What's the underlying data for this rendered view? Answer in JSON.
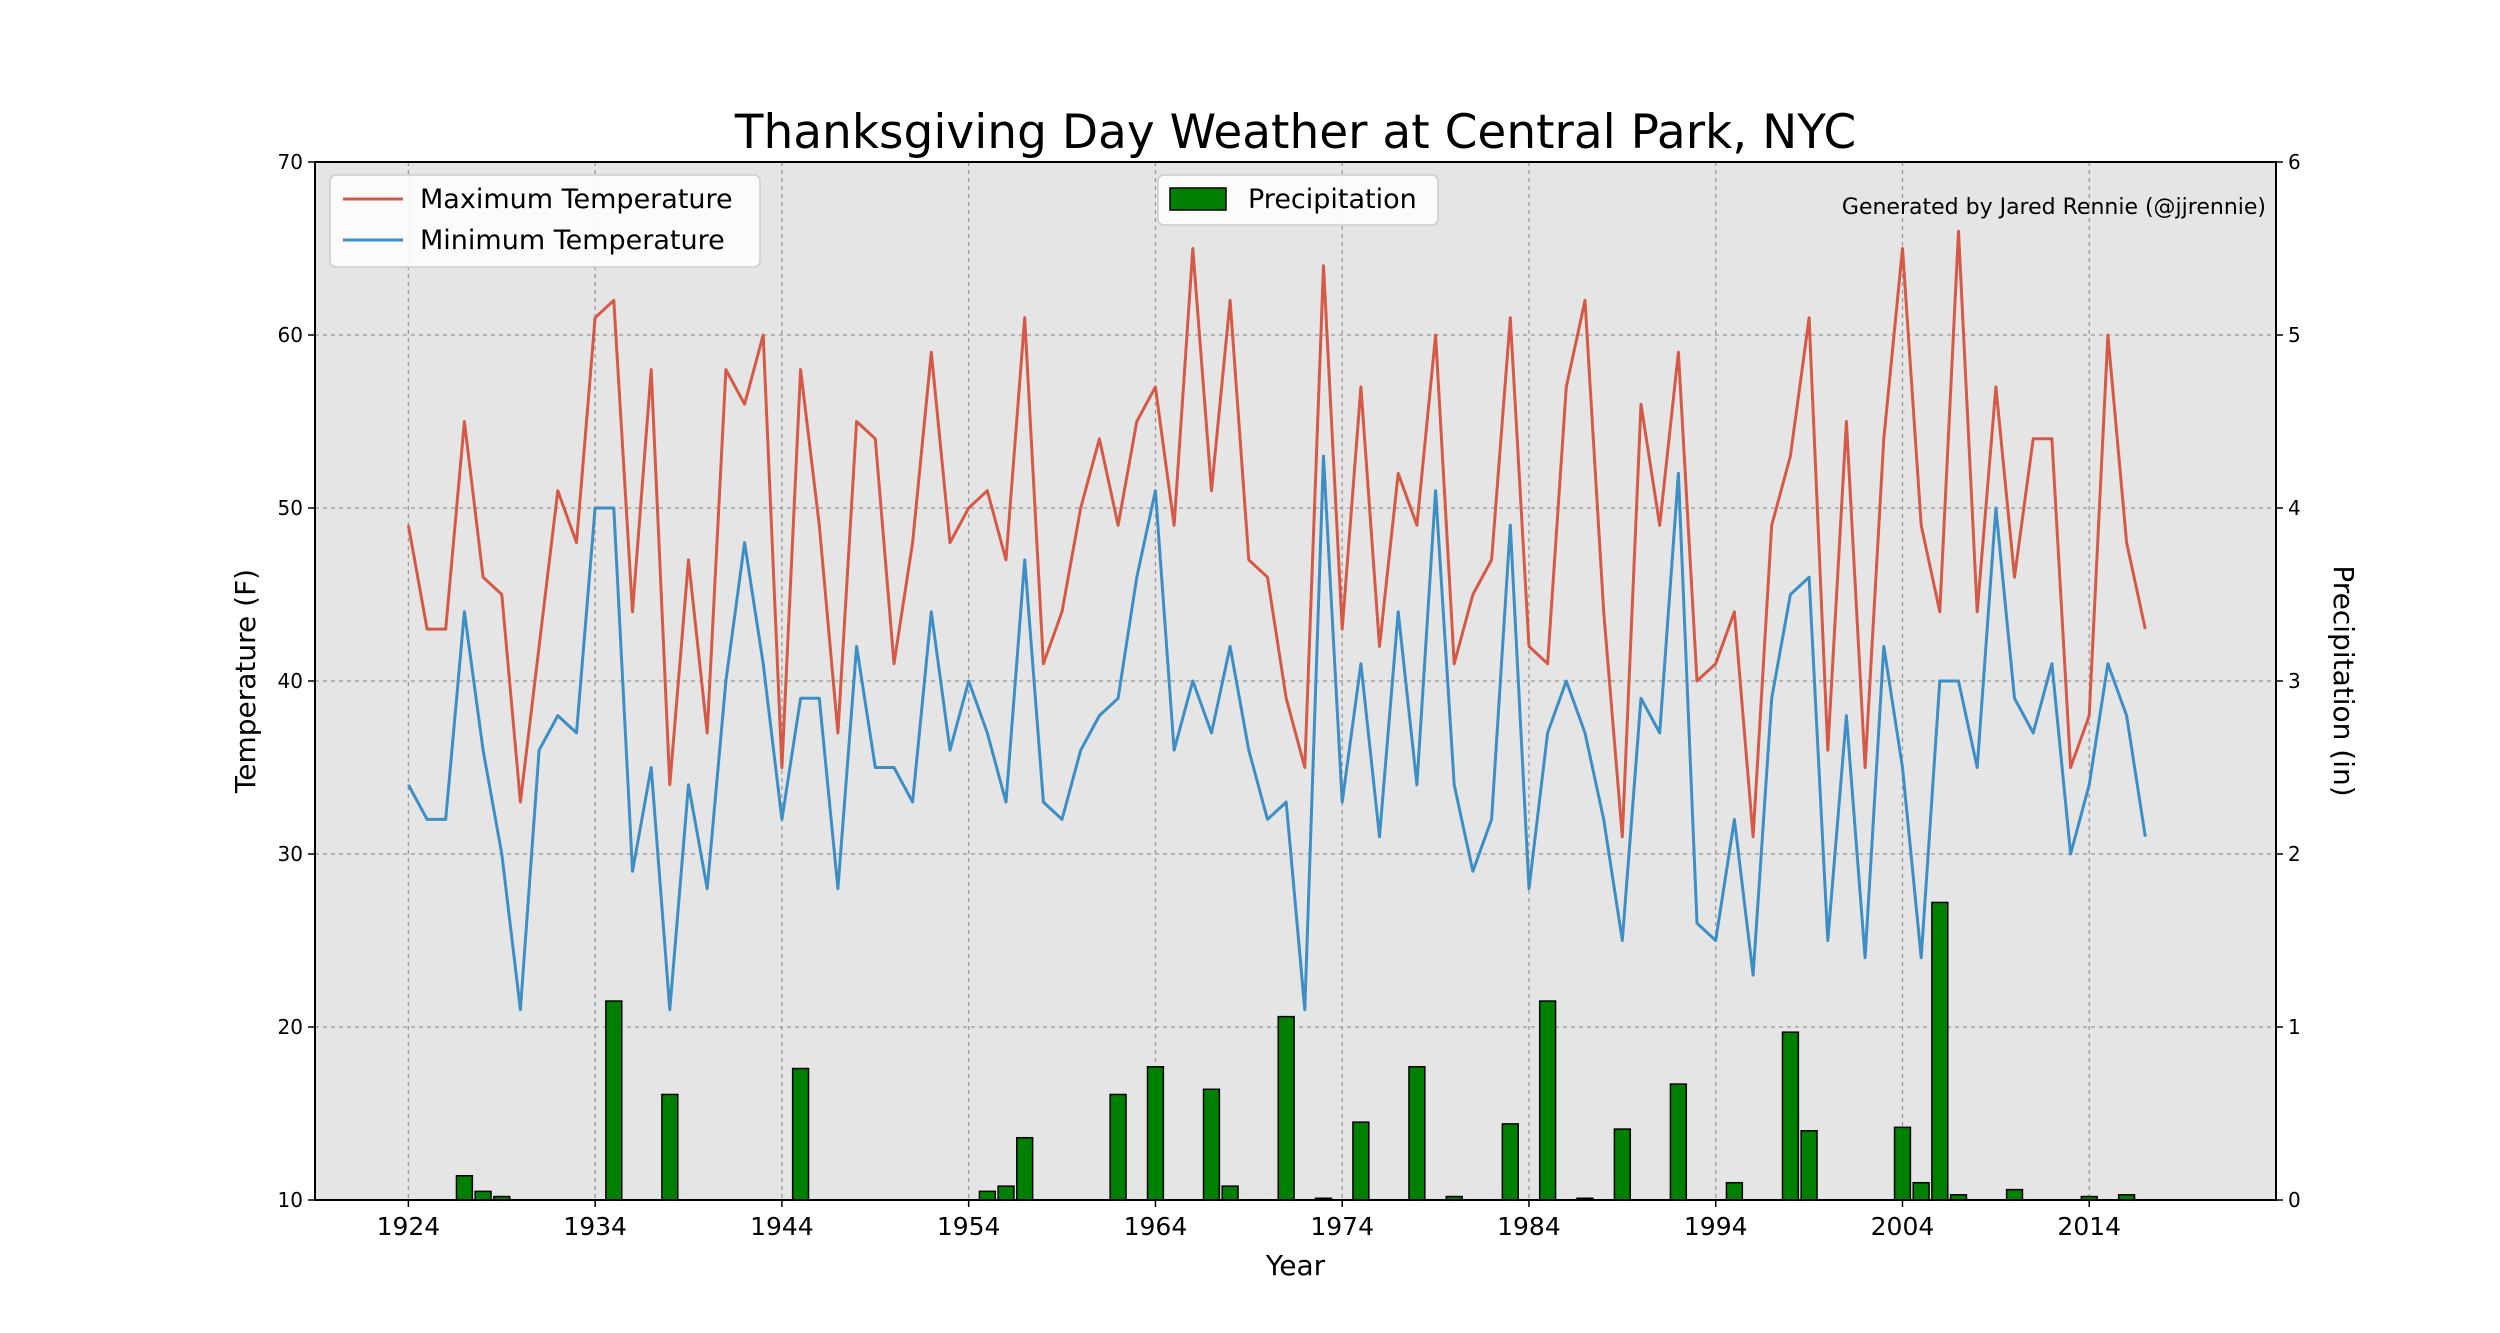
{
  "chart_data": {
    "type": "line",
    "title": "Thanksgiving Day Weather at Central Park, NYC",
    "xlabel": "Year",
    "ylabel_left": "Temperature (F)",
    "ylabel_right": "Precipitation (in)",
    "annotation": "Generated by Jared Rennie (@jjrennie)",
    "xlim": [
      1919,
      2024
    ],
    "ylim_left": [
      10,
      70
    ],
    "ylim_right": [
      0,
      6
    ],
    "xticks": [
      1924,
      1934,
      1944,
      1954,
      1964,
      1974,
      1984,
      1994,
      2004,
      2014
    ],
    "yticks_left": [
      10,
      20,
      30,
      40,
      50,
      60,
      70
    ],
    "yticks_right": [
      0,
      1,
      2,
      3,
      4,
      5,
      6
    ],
    "grid": true,
    "legend_left_placement": "top-left",
    "legend_right_placement": "top-center",
    "x": [
      1924,
      1925,
      1926,
      1927,
      1928,
      1929,
      1930,
      1931,
      1932,
      1933,
      1934,
      1935,
      1936,
      1937,
      1938,
      1939,
      1940,
      1941,
      1942,
      1943,
      1944,
      1945,
      1946,
      1947,
      1948,
      1949,
      1950,
      1951,
      1952,
      1953,
      1954,
      1955,
      1956,
      1957,
      1958,
      1959,
      1960,
      1961,
      1962,
      1963,
      1964,
      1965,
      1966,
      1967,
      1968,
      1969,
      1970,
      1971,
      1972,
      1973,
      1974,
      1975,
      1976,
      1977,
      1978,
      1979,
      1980,
      1981,
      1982,
      1983,
      1984,
      1985,
      1986,
      1987,
      1988,
      1989,
      1990,
      1991,
      1992,
      1993,
      1994,
      1995,
      1996,
      1997,
      1998,
      1999,
      2000,
      2001,
      2002,
      2003,
      2004,
      2005,
      2006,
      2007,
      2008,
      2009,
      2010,
      2011,
      2012,
      2013,
      2014,
      2015,
      2016,
      2017
    ],
    "series": [
      {
        "name": "Maximum Temperature",
        "axis": "left",
        "kind": "line",
        "color": "#d45a47",
        "values": [
          49,
          43,
          43,
          55,
          46,
          45,
          33,
          42,
          51,
          48,
          61,
          62,
          44,
          58,
          34,
          47,
          37,
          58,
          56,
          60,
          35,
          58,
          49,
          37,
          55,
          54,
          41,
          48,
          59,
          48,
          50,
          51,
          47,
          61,
          41,
          44,
          50,
          54,
          49,
          55,
          57,
          49,
          65,
          51,
          62,
          47,
          46,
          39,
          35,
          64,
          43,
          57,
          42,
          52,
          49,
          60,
          41,
          45,
          47,
          61,
          42,
          41,
          57,
          62,
          44,
          31,
          56,
          49,
          59,
          40,
          41,
          44,
          31,
          49,
          53,
          61,
          36,
          55,
          35,
          54,
          65,
          49,
          44,
          66,
          44,
          57,
          46,
          54,
          54,
          35,
          38,
          60,
          48,
          43
        ]
      },
      {
        "name": "Minimum Temperature",
        "axis": "left",
        "kind": "line",
        "color": "#3d8ec4",
        "values": [
          34,
          32,
          32,
          44,
          36,
          30,
          21,
          36,
          38,
          37,
          50,
          50,
          29,
          35,
          21,
          34,
          28,
          40,
          48,
          41,
          32,
          39,
          39,
          28,
          42,
          35,
          35,
          33,
          44,
          36,
          40,
          37,
          33,
          47,
          33,
          32,
          36,
          38,
          39,
          46,
          51,
          36,
          40,
          37,
          42,
          36,
          32,
          33,
          21,
          53,
          33,
          41,
          31,
          44,
          34,
          51,
          34,
          29,
          32,
          49,
          28,
          37,
          40,
          37,
          32,
          25,
          39,
          37,
          52,
          26,
          25,
          32,
          23,
          39,
          45,
          46,
          25,
          38,
          24,
          42,
          35,
          24,
          40,
          40,
          35,
          50,
          39,
          37,
          41,
          30,
          34,
          41,
          38,
          31
        ]
      },
      {
        "name": "Precipitation",
        "axis": "right",
        "kind": "bar",
        "color": "#008000",
        "values": [
          0,
          0,
          0,
          0.14,
          0.05,
          0.02,
          0,
          0,
          0,
          0,
          0,
          1.15,
          0,
          0,
          0.61,
          0,
          0,
          0,
          0,
          0,
          0,
          0.76,
          0,
          0,
          0,
          0,
          0,
          0,
          0,
          0,
          0,
          0.05,
          0.08,
          0.36,
          0,
          0,
          0,
          0,
          0.61,
          0,
          0.77,
          0,
          0,
          0.64,
          0.08,
          0,
          0,
          1.06,
          0,
          0.01,
          0,
          0.45,
          0,
          0,
          0.77,
          0,
          0.02,
          0,
          0,
          0.44,
          0,
          1.15,
          0,
          0.01,
          0,
          0.41,
          0,
          0,
          0.67,
          0,
          0,
          0.1,
          0,
          0,
          0.97,
          0.4,
          0,
          0,
          0,
          0,
          0.42,
          0.1,
          1.72,
          0.03,
          0,
          0,
          0.06,
          0,
          0,
          0,
          0.02,
          0,
          0.03,
          0
        ]
      }
    ]
  }
}
